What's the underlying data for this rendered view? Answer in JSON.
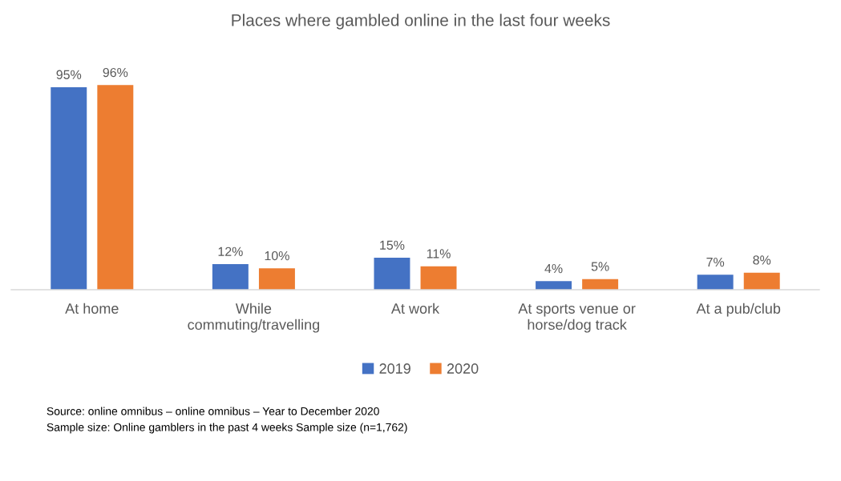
{
  "chart_data": {
    "type": "bar",
    "title": "Places where gambled online in the last four weeks",
    "categories": [
      "At home",
      "While commuting/travelling",
      "At work",
      "At sports venue or horse/dog track",
      "At a pub/club"
    ],
    "series": [
      {
        "name": "2019",
        "color": "#4472c4",
        "values": [
          95,
          12,
          15,
          4,
          7
        ],
        "value_labels": [
          "95%",
          "12%",
          "15%",
          "4%",
          "7%"
        ]
      },
      {
        "name": "2020",
        "color": "#ed7d31",
        "values": [
          96,
          10,
          11,
          5,
          8
        ],
        "value_labels": [
          "96%",
          "10%",
          "11%",
          "5%",
          "8%"
        ]
      }
    ],
    "legend": "bottom",
    "tick_labels": "x",
    "annotations": [
      "Source: online omnibus – online omnibus – Year to December 2020",
      "Sample size: Online gamblers in the past 4 weeks Sample size (n=1,762)"
    ]
  }
}
